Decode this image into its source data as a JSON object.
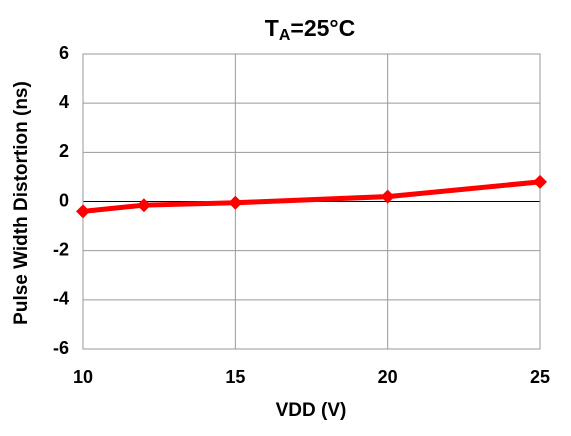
{
  "chart_data": {
    "type": "line",
    "title": {
      "text": "T",
      "subscript": "A",
      "suffix": "=25°C"
    },
    "x_label": "VDD (V)",
    "y_label": "Pulse Width Distortion (ns)",
    "x": [
      10,
      12,
      15,
      20,
      25
    ],
    "values": [
      -0.4,
      -0.15,
      -0.05,
      0.2,
      0.8
    ],
    "color": "#ff0000",
    "xlim": [
      10,
      25
    ],
    "xticks": [
      10,
      15,
      20,
      25
    ],
    "ylim": [
      -6,
      6
    ],
    "yticks": [
      -6,
      -4,
      -2,
      0,
      2,
      4,
      6
    ],
    "grid": true
  }
}
